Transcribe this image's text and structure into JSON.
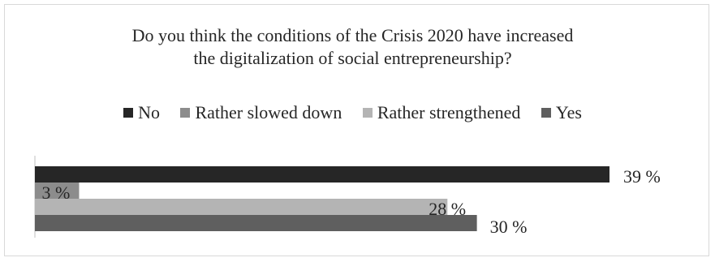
{
  "chart_data": {
    "type": "bar",
    "orientation": "horizontal",
    "title": "Do you think the conditions of the Crisis 2020 have increased the digitalization of social entrepreneurship?",
    "title_lines": [
      "Do you think the conditions of the Crisis 2020 have increased",
      "the digitalization of social entrepreneurship?"
    ],
    "legend_position": "top",
    "grid": false,
    "xlim": [
      0,
      39
    ],
    "series": [
      {
        "name": "No",
        "value": 39,
        "label": "39 %",
        "color": "#262626"
      },
      {
        "name": "Rather slowed down",
        "value": 3,
        "label": "3 %",
        "color": "#8c8c8c"
      },
      {
        "name": "Rather strengthened",
        "value": 28,
        "label": "28 %",
        "color": "#b4b4b4"
      },
      {
        "name": "Yes",
        "value": 30,
        "label": "30 %",
        "color": "#5f5f5f"
      }
    ]
  }
}
